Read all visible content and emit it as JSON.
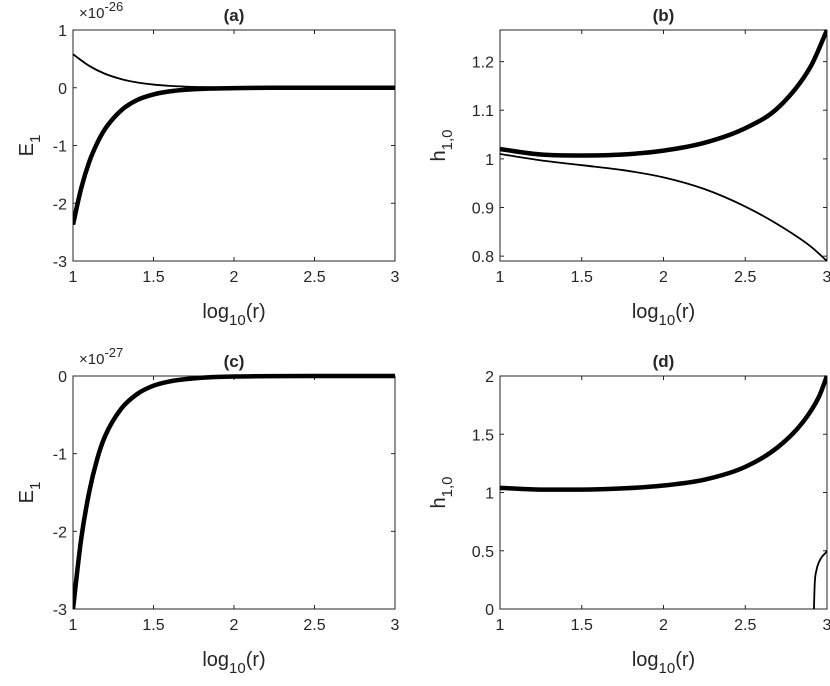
{
  "chart_data": [
    {
      "type": "line",
      "title": "(a)",
      "xlabel": "log",
      "xlabel_sub": "10",
      "xlabel_suffix": "(r)",
      "ylabel": "E",
      "ylabel_sub": "1",
      "exponent_label": "×10",
      "exponent_sup": "-26",
      "xlim": [
        1,
        3
      ],
      "ylim": [
        -3,
        1
      ],
      "xticks": [
        1,
        1.5,
        2,
        2.5,
        3
      ],
      "xtick_labels": [
        "1",
        "1.5",
        "2",
        "2.5",
        "3"
      ],
      "yticks": [
        1,
        0,
        -1,
        -2,
        -3
      ],
      "ytick_labels": [
        "1",
        "0",
        "-1",
        "-2",
        "-3"
      ],
      "series": [
        {
          "style": "thin",
          "x": [
            1,
            1.1,
            1.2,
            1.3,
            1.4,
            1.5,
            1.6,
            1.7,
            1.8,
            2.0,
            2.5,
            3
          ],
          "y": [
            0.58,
            0.38,
            0.24,
            0.15,
            0.09,
            0.055,
            0.033,
            0.02,
            0.012,
            0.004,
            0,
            0
          ]
        },
        {
          "style": "thick",
          "x": [
            1,
            1.05,
            1.1,
            1.15,
            1.2,
            1.3,
            1.4,
            1.5,
            1.6,
            1.7,
            1.8,
            2.0,
            2.5,
            3
          ],
          "y": [
            -2.37,
            -1.75,
            -1.29,
            -0.96,
            -0.71,
            -0.39,
            -0.21,
            -0.115,
            -0.063,
            -0.035,
            -0.019,
            -0.006,
            0,
            0
          ]
        }
      ]
    },
    {
      "type": "line",
      "title": "(b)",
      "xlabel": "log",
      "xlabel_sub": "10",
      "xlabel_suffix": "(r)",
      "ylabel": "h",
      "ylabel_sub": "1,0",
      "xlim": [
        1,
        3
      ],
      "ylim": [
        0.79,
        1.265
      ],
      "xticks": [
        1,
        1.5,
        2,
        2.5,
        3
      ],
      "xtick_labels": [
        "1",
        "1.5",
        "2",
        "2.5",
        "3"
      ],
      "yticks": [
        1.2,
        1.1,
        1,
        0.9,
        0.8
      ],
      "ytick_labels": [
        "1.2",
        "1.1",
        "1",
        "0.9",
        "0.8"
      ],
      "series": [
        {
          "style": "thick",
          "x": [
            1,
            1.25,
            1.5,
            1.75,
            2.0,
            2.25,
            2.5,
            2.7,
            2.9,
            3
          ],
          "y": [
            1.02,
            1.009,
            1.007,
            1.009,
            1.017,
            1.033,
            1.063,
            1.105,
            1.19,
            1.265
          ]
        },
        {
          "style": "thin",
          "x": [
            1,
            1.25,
            1.5,
            1.75,
            2.0,
            2.25,
            2.5,
            2.7,
            2.9,
            3
          ],
          "y": [
            1.01,
            0.997,
            0.987,
            0.977,
            0.962,
            0.938,
            0.902,
            0.865,
            0.82,
            0.79
          ]
        }
      ]
    },
    {
      "type": "line",
      "title": "(c)",
      "xlabel": "log",
      "xlabel_sub": "10",
      "xlabel_suffix": "(r)",
      "ylabel": "E",
      "ylabel_sub": "1",
      "exponent_label": "×10",
      "exponent_sup": "-27",
      "xlim": [
        1,
        3
      ],
      "ylim": [
        -3,
        0
      ],
      "xticks": [
        1,
        1.5,
        2,
        2.5,
        3
      ],
      "xtick_labels": [
        "1",
        "1.5",
        "2",
        "2.5",
        "3"
      ],
      "yticks": [
        0,
        -1,
        -2,
        -3
      ],
      "ytick_labels": [
        "0",
        "-1",
        "-2",
        "-3"
      ],
      "series": [
        {
          "style": "thick",
          "x": [
            1,
            1.05,
            1.1,
            1.15,
            1.2,
            1.3,
            1.4,
            1.5,
            1.6,
            1.7,
            1.8,
            2.0,
            2.5,
            3
          ],
          "y": [
            -3,
            -2.11,
            -1.5,
            -1.07,
            -0.77,
            -0.42,
            -0.23,
            -0.125,
            -0.07,
            -0.04,
            -0.022,
            -0.007,
            0,
            0
          ]
        }
      ]
    },
    {
      "type": "line",
      "title": "(d)",
      "xlabel": "log",
      "xlabel_sub": "10",
      "xlabel_suffix": "(r)",
      "ylabel": "h",
      "ylabel_sub": "1,0",
      "xlim": [
        1,
        3
      ],
      "ylim": [
        0,
        2
      ],
      "xticks": [
        1,
        1.5,
        2,
        2.5,
        3
      ],
      "xtick_labels": [
        "1",
        "1.5",
        "2",
        "2.5",
        "3"
      ],
      "yticks": [
        2,
        1.5,
        1,
        0.5,
        0
      ],
      "ytick_labels": [
        "2",
        "1.5",
        "1",
        "0.5",
        "0"
      ],
      "series": [
        {
          "style": "thick",
          "x": [
            1,
            1.25,
            1.5,
            1.75,
            2.0,
            2.25,
            2.5,
            2.7,
            2.85,
            2.95,
            3
          ],
          "y": [
            1.04,
            1.025,
            1.025,
            1.035,
            1.06,
            1.11,
            1.22,
            1.39,
            1.6,
            1.82,
            2.0
          ]
        },
        {
          "style": "thin",
          "x": [
            2.92,
            2.925,
            2.935,
            2.95,
            2.97,
            2.99,
            3
          ],
          "y": [
            0,
            0.22,
            0.33,
            0.4,
            0.45,
            0.48,
            0.5
          ]
        }
      ]
    }
  ]
}
